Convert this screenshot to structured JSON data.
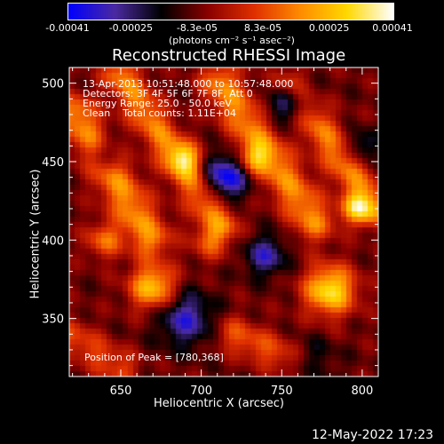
{
  "chart_data": {
    "type": "heatmap",
    "title": "Reconstructed RHESSI Image",
    "xlabel": "Heliocentric X (arcsec)",
    "ylabel": "Heliocentric Y (arcsec)",
    "xlim": [
      618,
      810
    ],
    "ylim": [
      313,
      510
    ],
    "x_ticks": [
      650,
      700,
      750,
      800
    ],
    "y_ticks": [
      350,
      400,
      450,
      500
    ],
    "annotations": [
      "13-Apr-2013 10:51:48.000 to 10:57:48.000",
      "Detectors: 3F 4F 5F 6F 7F 8F, Att 0",
      "Energy Range: 25.0 - 50.0 keV",
      "Clean    Total counts: 1.11E+04"
    ],
    "peak_label": "Position of Peak = [780,368]",
    "peak": [
      780,
      368
    ],
    "colorbar": {
      "range": [
        -0.00041,
        0.00041
      ],
      "tick_labels": [
        "-0.00041",
        "-0.00025",
        "-8.3e-05",
        "8.3e-05",
        "0.00025",
        "0.00041"
      ],
      "tick_values": [
        -0.00041,
        -0.00025,
        -8.3e-05,
        8.3e-05,
        0.00025,
        0.00041
      ],
      "units": "(photons cm⁻² s⁻¹ asec⁻²)",
      "colors": [
        "#0000ff",
        "#4b2aa0",
        "#000000",
        "#8a0000",
        "#e03000",
        "#ff8c00",
        "#ffd800",
        "#ffffff"
      ]
    },
    "grid": false,
    "bright_ridges": [
      {
        "x1": 622,
        "y1": 480,
        "x2": 668,
        "y2": 402,
        "amp": 0.00027,
        "sigma": 9
      },
      {
        "x1": 650,
        "y1": 505,
        "x2": 712,
        "y2": 410,
        "amp": 0.00025,
        "sigma": 8
      },
      {
        "x1": 712,
        "y1": 500,
        "x2": 770,
        "y2": 412,
        "amp": 0.00026,
        "sigma": 9
      },
      {
        "x1": 755,
        "y1": 498,
        "x2": 808,
        "y2": 420,
        "amp": 0.00024,
        "sigma": 8
      },
      {
        "x1": 720,
        "y1": 340,
        "x2": 768,
        "y2": 318,
        "amp": 0.00018,
        "sigma": 8
      },
      {
        "x1": 620,
        "y1": 338,
        "x2": 650,
        "y2": 318,
        "amp": 0.00016,
        "sigma": 8
      }
    ],
    "bright_blobs": [
      {
        "x": 670,
        "y": 370,
        "amp": 0.00036,
        "sigma": 10
      },
      {
        "x": 780,
        "y": 368,
        "amp": 0.00041,
        "sigma": 11
      },
      {
        "x": 797,
        "y": 420,
        "amp": 0.00032,
        "sigma": 7
      },
      {
        "x": 690,
        "y": 452,
        "amp": 0.00026,
        "sigma": 7
      },
      {
        "x": 733,
        "y": 452,
        "amp": 0.00024,
        "sigma": 7
      },
      {
        "x": 640,
        "y": 400,
        "amp": 0.00022,
        "sigma": 8
      },
      {
        "x": 705,
        "y": 398,
        "amp": 0.00016,
        "sigma": 8
      }
    ],
    "dark_blobs": [
      {
        "x": 715,
        "y": 440,
        "amp": -0.00032,
        "sigma": 10
      },
      {
        "x": 755,
        "y": 488,
        "amp": -0.00026,
        "sigma": 10
      },
      {
        "x": 690,
        "y": 350,
        "amp": -0.00024,
        "sigma": 12
      },
      {
        "x": 768,
        "y": 320,
        "amp": -0.00022,
        "sigma": 10
      },
      {
        "x": 640,
        "y": 455,
        "amp": -0.00018,
        "sigma": 8
      },
      {
        "x": 800,
        "y": 460,
        "amp": -0.00016,
        "sigma": 7
      },
      {
        "x": 740,
        "y": 390,
        "amp": -0.00022,
        "sigma": 9
      }
    ]
  },
  "footer": {
    "timestamp": "12-May-2022 17:23"
  }
}
